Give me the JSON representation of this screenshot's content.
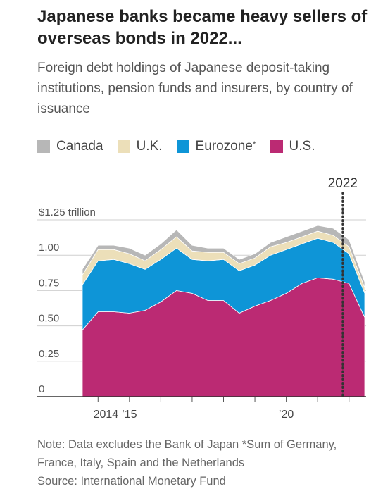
{
  "title": "Japanese banks became heavy sellers of overseas bonds in 2022...",
  "subtitle": "Foreign debt holdings of Japanese deposit-taking institutions, pension funds and insurers, by country of issuance",
  "legend": [
    {
      "name": "Canada",
      "color": "#b7b7b7",
      "marker": ""
    },
    {
      "name": "U.K.",
      "color": "#ecdfb9",
      "marker": ""
    },
    {
      "name": "Eurozone",
      "color": "#0e95d7",
      "marker": "*"
    },
    {
      "name": "U.S.",
      "color": "#bb2a73",
      "marker": ""
    }
  ],
  "footer": {
    "note": "Note: Data excludes the Bank of Japan *Sum of Germany, France, Italy, Spain and the Netherlands",
    "source": "Source: International Monetary Fund"
  },
  "chart_data": {
    "type": "area",
    "stacked": true,
    "x": [
      2013.5,
      2014,
      2014.5,
      2015,
      2015.5,
      2016,
      2016.5,
      2017,
      2017.5,
      2018,
      2018.5,
      2019,
      2019.5,
      2020,
      2020.5,
      2021,
      2021.5,
      2022,
      2022.5
    ],
    "series": [
      {
        "name": "U.S.",
        "color": "#bb2a73",
        "values": [
          0.47,
          0.6,
          0.6,
          0.59,
          0.61,
          0.67,
          0.75,
          0.73,
          0.68,
          0.68,
          0.59,
          0.64,
          0.68,
          0.73,
          0.8,
          0.84,
          0.83,
          0.8,
          0.56
        ]
      },
      {
        "name": "Eurozone",
        "color": "#0e95d7",
        "values": [
          0.32,
          0.36,
          0.37,
          0.35,
          0.29,
          0.3,
          0.3,
          0.24,
          0.28,
          0.29,
          0.3,
          0.29,
          0.32,
          0.31,
          0.28,
          0.28,
          0.26,
          0.21,
          0.17
        ]
      },
      {
        "name": "U.K.",
        "color": "#ecdfb9",
        "values": [
          0.07,
          0.08,
          0.07,
          0.07,
          0.06,
          0.07,
          0.08,
          0.06,
          0.06,
          0.05,
          0.05,
          0.05,
          0.06,
          0.05,
          0.05,
          0.05,
          0.05,
          0.05,
          0.04
        ]
      },
      {
        "name": "Canada",
        "color": "#b7b7b7",
        "values": [
          0.04,
          0.03,
          0.03,
          0.04,
          0.04,
          0.04,
          0.05,
          0.04,
          0.03,
          0.03,
          0.03,
          0.03,
          0.03,
          0.04,
          0.04,
          0.04,
          0.05,
          0.05,
          0.04
        ]
      }
    ],
    "y_ticks": [
      {
        "value": 0,
        "label": "0"
      },
      {
        "value": 0.25,
        "label": "0.25"
      },
      {
        "value": 0.5,
        "label": "0.50"
      },
      {
        "value": 0.75,
        "label": "0.75"
      },
      {
        "value": 1.0,
        "label": "1.00"
      },
      {
        "value": 1.25,
        "label": "$1.25 trillion"
      }
    ],
    "x_ticks": [
      {
        "value": 2014.25,
        "label": "2014"
      },
      {
        "value": 2015,
        "label": "’15"
      },
      {
        "value": 2020,
        "label": "’20"
      }
    ],
    "ylim": [
      0,
      1.25
    ],
    "xlim": [
      2013.5,
      2022.6
    ],
    "annotation": {
      "label": "2022",
      "x": 2021.8,
      "style": "dotted"
    },
    "grid": true,
    "legend_position": "top"
  }
}
